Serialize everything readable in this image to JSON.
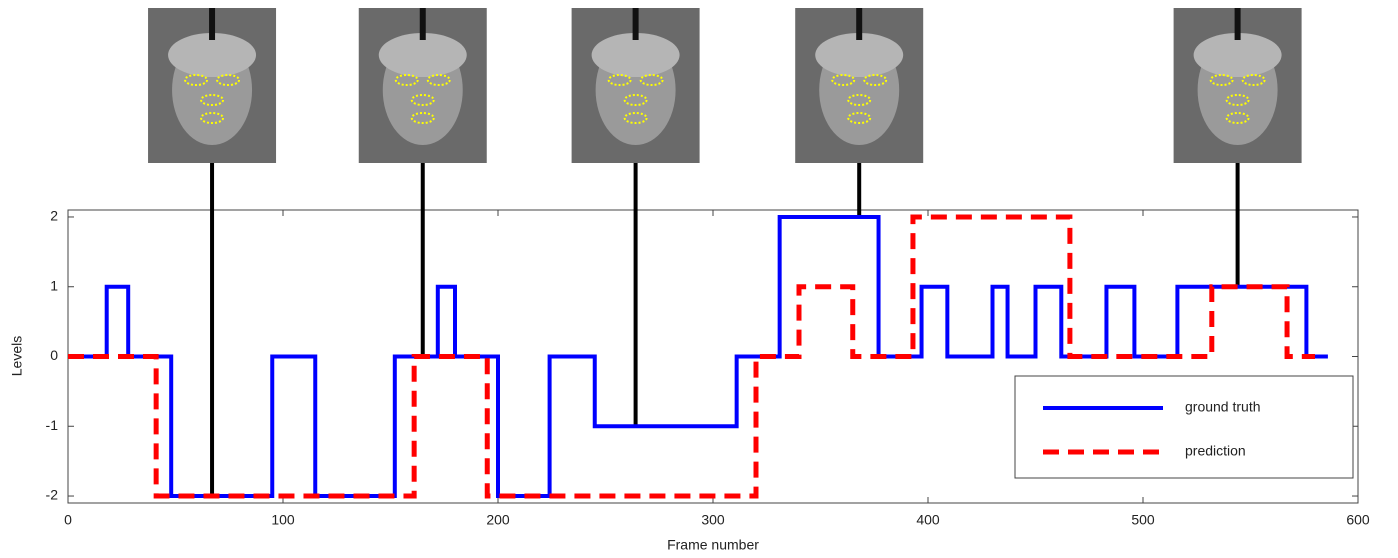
{
  "chart_data": {
    "type": "line",
    "xlabel": "Frame number",
    "ylabel": "Levels",
    "xlim": [
      0,
      600
    ],
    "ylim": [
      -2.1,
      2.1
    ],
    "xticks": [
      0,
      100,
      200,
      300,
      400,
      500,
      600
    ],
    "yticks": [
      -2,
      -1,
      0,
      1,
      2
    ],
    "grid": false,
    "legend": "lower right",
    "marked_frames": [
      67,
      165,
      264,
      368,
      544
    ],
    "series": [
      {
        "name": "ground truth",
        "color": "#0000ff",
        "style": "solid",
        "x": [
          0,
          18,
          18,
          28,
          28,
          48,
          48,
          95,
          95,
          115,
          115,
          152,
          152,
          172,
          172,
          180,
          180,
          200,
          200,
          224,
          224,
          245,
          245,
          311,
          311,
          331,
          331,
          377,
          377,
          397,
          397,
          409,
          409,
          430,
          430,
          437,
          437,
          450,
          450,
          462,
          462,
          483,
          483,
          496,
          496,
          516,
          516,
          576,
          576,
          586
        ],
        "values": [
          0,
          0,
          1,
          1,
          0,
          0,
          -2,
          -2,
          0,
          0,
          -2,
          -2,
          0,
          0,
          1,
          1,
          0,
          0,
          -2,
          -2,
          0,
          0,
          -1,
          -1,
          0,
          0,
          2,
          2,
          0,
          0,
          1,
          1,
          0,
          0,
          1,
          1,
          0,
          0,
          1,
          1,
          0,
          0,
          1,
          1,
          0,
          0,
          1,
          1,
          0,
          0
        ]
      },
      {
        "name": "prediction",
        "color": "#ff0000",
        "style": "dashed",
        "x": [
          0,
          41,
          41,
          161,
          161,
          195,
          195,
          320,
          320,
          340,
          340,
          365,
          365,
          393,
          393,
          466,
          466,
          532,
          532,
          567,
          567,
          580
        ],
        "values": [
          0,
          0,
          -2,
          -2,
          0,
          0,
          -2,
          -2,
          0,
          0,
          1,
          1,
          0,
          0,
          2,
          2,
          0,
          0,
          1,
          1,
          0,
          0
        ]
      }
    ]
  }
}
